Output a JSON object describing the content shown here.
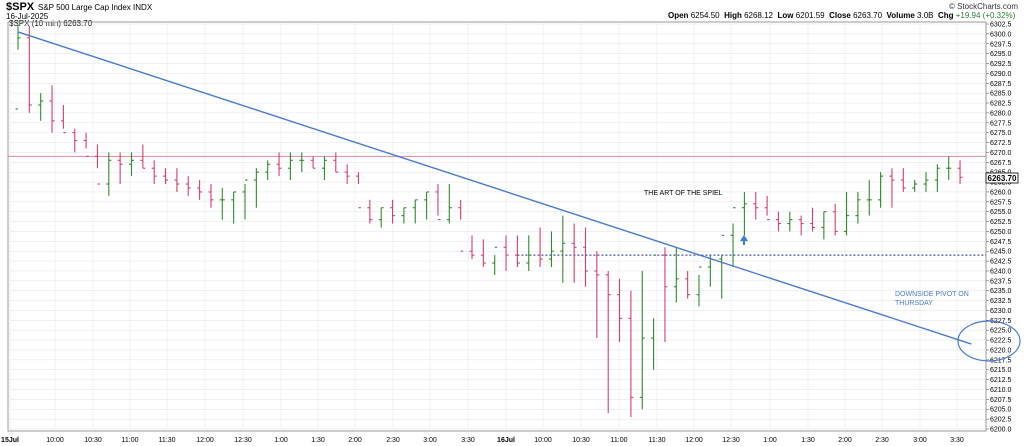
{
  "header": {
    "symbol": "$SPX",
    "name": "S&P 500 Large Cap Index",
    "exchange": "INDX",
    "date": "16-Jul-2025",
    "brand": "© StockCharts.com",
    "open_label": "Open",
    "open": "6254.50",
    "high_label": "High",
    "high": "6268.12",
    "low_label": "Low",
    "low": "6201.59",
    "close_label": "Close",
    "close": "6263.70",
    "volume_label": "Volume",
    "volume": "3.0B",
    "chg_label": "Chg",
    "chg": "+19.94 (+0.32%)",
    "legend": "$SPX (10 min) 6263.70",
    "price_tag": "6263.70"
  },
  "annotations": {
    "title": "THE ART OF THE SPIEL",
    "pivot": [
      "DOWNSIDE PIVOT ON",
      "THURSDAY"
    ]
  },
  "colors": {
    "up": "#2e8b2e",
    "down": "#d6406a",
    "trendline": "#4a7bd0",
    "grid": "#e3e3e3",
    "hline_red": "#d98a9a",
    "hline_blue": "#1f2a8c",
    "arrow": "#3a7bd5"
  },
  "chart_data": {
    "type": "ohlc",
    "interval": "10 min",
    "ylim": [
      6200,
      6302.5
    ],
    "ytick_step": 2.5,
    "x_ticks": [
      "15Jul",
      "10:00",
      "10:30",
      "11:00",
      "11:30",
      "12:00",
      "12:30",
      "1:00",
      "1:30",
      "2:00",
      "2:30",
      "3:00",
      "3:30",
      "16Jul",
      "10:00",
      "10:30",
      "11:00",
      "11:30",
      "12:00",
      "12:30",
      "1:00",
      "1:30",
      "2:00",
      "2:30",
      "3:00",
      "3:30"
    ],
    "bold_ticks": [
      "15Jul",
      "16Jul"
    ],
    "bars_open": [
      6281,
      6299,
      6282,
      6283,
      6278,
      6275,
      6273,
      6269,
      6262,
      6268,
      6267,
      6268,
      6266,
      6264,
      6263,
      6262,
      6261,
      6260,
      6258,
      6258,
      6260,
      6263,
      6265,
      6267,
      6266,
      6268,
      6268,
      6266,
      6268,
      6265,
      6264,
      6256,
      6253,
      6256,
      6254,
      6256,
      6258,
      6260,
      6253,
      6256,
      6245,
      6244,
      6242,
      6246,
      6244,
      6242,
      6244,
      6243,
      6245,
      6247,
      6246,
      6240,
      6239,
      6234,
      6228,
      6208,
      6223,
      6244,
      6236,
      6238,
      6234,
      6241,
      6243,
      6249,
      6256,
      6257,
      6256,
      6253,
      6252,
      6253,
      6252,
      6251,
      6255,
      6250,
      6254,
      6258,
      6258,
      6264,
      6263,
      6261,
      6262,
      6263,
      6266,
      6266
    ],
    "bars_high": [
      6302.5,
      6302,
      6285,
      6287,
      6282,
      6276,
      6275,
      6272,
      6270,
      6270,
      6270,
      6272,
      6268,
      6266,
      6266,
      6264,
      6263,
      6262,
      6261,
      6260,
      6262,
      6266,
      6268,
      6270,
      6270,
      6270,
      6269,
      6269,
      6270,
      6267,
      6265,
      6258,
      6256,
      6258,
      6256,
      6258,
      6260,
      6262,
      6262,
      6258,
      6249,
      6248,
      6244,
      6249,
      6249,
      6249,
      6251,
      6250,
      6254,
      6252,
      6251,
      6245,
      6240,
      6238,
      6235,
      6240,
      6228,
      6246,
      6246,
      6240,
      6239,
      6244,
      6244,
      6252,
      6260,
      6260,
      6259,
      6255,
      6255,
      6254,
      6256,
      6255,
      6257,
      6260,
      6260,
      6263,
      6265,
      6266,
      6266,
      6263,
      6265,
      6267,
      6269,
      6268
    ],
    "bars_low": [
      6296,
      6280,
      6278,
      6275,
      6276,
      6270,
      6271,
      6266,
      6259,
      6262,
      6264,
      6266,
      6262,
      6262,
      6260,
      6259,
      6258,
      6256,
      6253,
      6252,
      6253,
      6256,
      6263,
      6264,
      6263,
      6265,
      6266,
      6263,
      6265,
      6262,
      6262,
      6252,
      6251,
      6252,
      6252,
      6252,
      6253,
      6254,
      6252,
      6253,
      6243,
      6241,
      6239,
      6240,
      6241,
      6240,
      6241,
      6241,
      6237,
      6237,
      6236,
      6223,
      6204,
      6222,
      6203,
      6205,
      6215,
      6222,
      6232,
      6233,
      6231,
      6236,
      6233,
      6241,
      6249,
      6253,
      6254,
      6250,
      6250,
      6249,
      6250,
      6248,
      6249,
      6249,
      6252,
      6254,
      6256,
      6256,
      6260,
      6260,
      6260,
      6260,
      6263,
      6262
    ],
    "bars_close": [
      6299,
      6282,
      6283,
      6278,
      6275,
      6273,
      6269,
      6262,
      6268,
      6267,
      6268,
      6266,
      6264,
      6263,
      6262,
      6261,
      6260,
      6258,
      6258,
      6260,
      6263,
      6265,
      6267,
      6266,
      6268,
      6268,
      6266,
      6268,
      6265,
      6264,
      6256,
      6253,
      6256,
      6254,
      6256,
      6258,
      6260,
      6253,
      6256,
      6245,
      6244,
      6242,
      6246,
      6244,
      6242,
      6244,
      6243,
      6245,
      6247,
      6246,
      6240,
      6239,
      6234,
      6228,
      6208,
      6223,
      6244,
      6236,
      6238,
      6234,
      6241,
      6243,
      6249,
      6256,
      6257,
      6256,
      6253,
      6252,
      6253,
      6252,
      6251,
      6255,
      6250,
      6254,
      6258,
      6258,
      6264,
      6263,
      6261,
      6262,
      6263,
      6266,
      6266,
      6263.7
    ],
    "trendline": {
      "from": [
        0,
        6300.5
      ],
      "to": [
        84,
        6221.5
      ]
    },
    "hline_red": 6269,
    "hline_blue": 6244
  }
}
